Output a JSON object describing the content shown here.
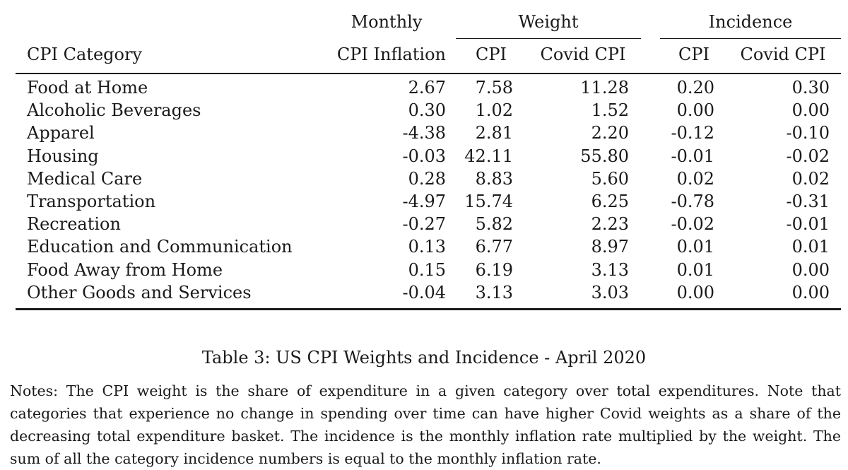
{
  "table": {
    "group_headers": {
      "monthly": "Monthly",
      "weight": "Weight",
      "incidence": "Incidence"
    },
    "columns": {
      "category": "CPI Category",
      "inflation": "CPI Inflation",
      "weight_cpi": "CPI",
      "weight_covid": "Covid CPI",
      "incidence_cpi": "CPI",
      "incidence_covid": "Covid CPI"
    },
    "rows": [
      {
        "category": "Food at Home",
        "inflation": "2.67",
        "weight_cpi": "7.58",
        "weight_covid": "11.28",
        "incidence_cpi": "0.20",
        "incidence_covid": "0.30"
      },
      {
        "category": "Alcoholic Beverages",
        "inflation": "0.30",
        "weight_cpi": "1.02",
        "weight_covid": "1.52",
        "incidence_cpi": "0.00",
        "incidence_covid": "0.00"
      },
      {
        "category": "Apparel",
        "inflation": "-4.38",
        "weight_cpi": "2.81",
        "weight_covid": "2.20",
        "incidence_cpi": "-0.12",
        "incidence_covid": "-0.10"
      },
      {
        "category": "Housing",
        "inflation": "-0.03",
        "weight_cpi": "42.11",
        "weight_covid": "55.80",
        "incidence_cpi": "-0.01",
        "incidence_covid": "-0.02"
      },
      {
        "category": "Medical Care",
        "inflation": "0.28",
        "weight_cpi": "8.83",
        "weight_covid": "5.60",
        "incidence_cpi": "0.02",
        "incidence_covid": "0.02"
      },
      {
        "category": "Transportation",
        "inflation": "-4.97",
        "weight_cpi": "15.74",
        "weight_covid": "6.25",
        "incidence_cpi": "-0.78",
        "incidence_covid": "-0.31"
      },
      {
        "category": "Recreation",
        "inflation": "-0.27",
        "weight_cpi": "5.82",
        "weight_covid": "2.23",
        "incidence_cpi": "-0.02",
        "incidence_covid": "-0.01"
      },
      {
        "category": "Education and Communication",
        "inflation": "0.13",
        "weight_cpi": "6.77",
        "weight_covid": "8.97",
        "incidence_cpi": "0.01",
        "incidence_covid": "0.01"
      },
      {
        "category": "Food Away from Home",
        "inflation": "0.15",
        "weight_cpi": "6.19",
        "weight_covid": "3.13",
        "incidence_cpi": "0.01",
        "incidence_covid": "0.00"
      },
      {
        "category": "Other Goods and Services",
        "inflation": "-0.04",
        "weight_cpi": "3.13",
        "weight_covid": "3.03",
        "incidence_cpi": "0.00",
        "incidence_covid": "0.00"
      }
    ]
  },
  "caption": "Table 3: US CPI Weights and Incidence - April 2020",
  "notes": "Notes: The CPI weight is the share of expenditure in a given category over total expenditures. Note that categories that experience no change in spending over time can have higher Covid weights as a share of the decreasing total expenditure basket. The incidence is the monthly inflation rate multiplied by the weight. The sum of all the category incidence numbers is equal to the monthly inflation rate."
}
